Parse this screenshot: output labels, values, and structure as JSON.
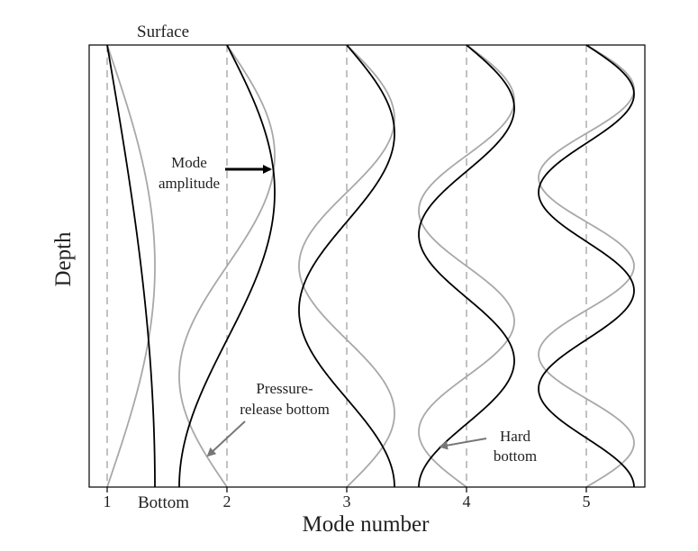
{
  "labels": {
    "surface": "Surface",
    "bottom": "Bottom",
    "y_axis": "Depth",
    "x_axis": "Mode number",
    "mode_amplitude_line1": "Mode",
    "mode_amplitude_line2": "amplitude",
    "pressure_release_line1": "Pressure-",
    "pressure_release_line2": "release bottom",
    "hard_bottom_line1": "Hard",
    "hard_bottom_line2": "bottom"
  },
  "ticks": [
    "1",
    "2",
    "3",
    "4",
    "5"
  ],
  "modes": [
    1,
    2,
    3,
    4,
    5
  ],
  "curves": [
    {
      "name": "pressure-release bottom",
      "color": "#000000"
    },
    {
      "name": "hard bottom",
      "color": "#a8a8a8"
    }
  ],
  "colors": {
    "frame": "#000000",
    "dashed_guides": "#9a9a9a",
    "arrow_dark": "#000000",
    "arrow_gray": "#777777"
  }
}
